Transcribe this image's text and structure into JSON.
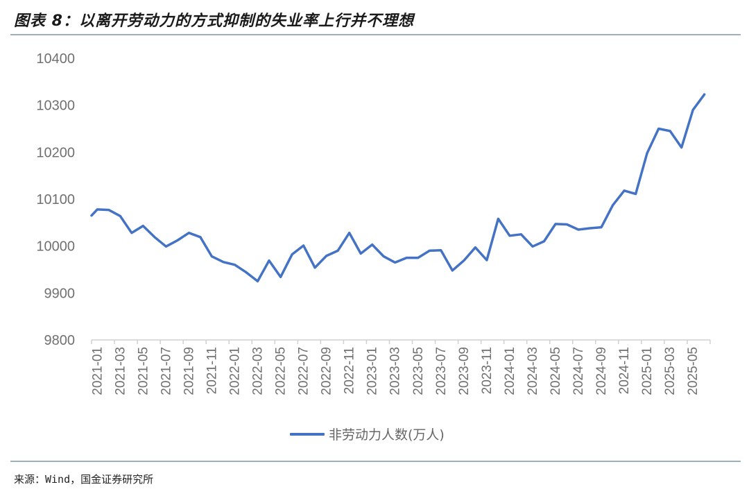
{
  "header": {
    "title": "图表 8：以离开劳动力的方式抑制的失业率上行并不理想"
  },
  "footer": {
    "source": "来源：Wind，国金证券研究所"
  },
  "colors": {
    "series": "#4472c4",
    "axis": "#d0d0d0",
    "tick_text": "#707070",
    "rule": "#9db0ba"
  },
  "chart_data": {
    "type": "line",
    "title": "以离开劳动力的方式抑制的失业率上行并不理想",
    "xlabel": "",
    "ylabel": "",
    "ylim": [
      9800,
      10400
    ],
    "yticks": [
      9800,
      9900,
      10000,
      10100,
      10200,
      10300,
      10400
    ],
    "grid": false,
    "legend_position": "bottom",
    "xtick_labels": [
      "2021-01",
      "2021-03",
      "2021-05",
      "2021-07",
      "2021-09",
      "2021-11",
      "2022-01",
      "2022-03",
      "2022-05",
      "2022-07",
      "2022-09",
      "2022-11",
      "2023-01",
      "2023-03",
      "2023-05",
      "2023-07",
      "2023-09",
      "2023-11",
      "2024-01",
      "2024-03",
      "2024-05",
      "2024-07",
      "2024-09",
      "2024-11",
      "2025-01",
      "2025-03",
      "2025-05"
    ],
    "x": [
      "2021-01",
      "2021-02",
      "2021-03",
      "2021-04",
      "2021-05",
      "2021-06",
      "2021-07",
      "2021-08",
      "2021-09",
      "2021-10",
      "2021-11",
      "2021-12",
      "2022-01",
      "2022-02",
      "2022-03",
      "2022-04",
      "2022-05",
      "2022-06",
      "2022-07",
      "2022-08",
      "2022-09",
      "2022-10",
      "2022-11",
      "2022-12",
      "2023-01",
      "2023-02",
      "2023-03",
      "2023-04",
      "2023-05",
      "2023-06",
      "2023-07",
      "2023-08",
      "2023-09",
      "2023-10",
      "2023-11",
      "2023-12",
      "2024-01",
      "2024-02",
      "2024-03",
      "2024-04",
      "2024-05",
      "2024-06",
      "2024-07",
      "2024-08",
      "2024-09",
      "2024-10",
      "2024-11",
      "2024-12",
      "2025-01",
      "2025-02",
      "2025-03",
      "2025-04",
      "2025-05",
      "2025-06"
    ],
    "series": [
      {
        "name": "非劳动力人数(万人)",
        "values": [
          10078,
          10077,
          10064,
          10028,
          10043,
          10019,
          9999,
          10012,
          10028,
          10019,
          9978,
          9966,
          9960,
          9944,
          9925,
          9969,
          9934,
          9982,
          10001,
          9954,
          9979,
          9990,
          10028,
          9984,
          10003,
          9978,
          9965,
          9975,
          9975,
          9990,
          9991,
          9948,
          9969,
          9997,
          9970,
          10058,
          10022,
          10025,
          9999,
          10010,
          10047,
          10046,
          10035,
          10038,
          10040,
          10087,
          10118,
          10111,
          10198,
          10250,
          10245,
          10210,
          10290,
          10323
        ]
      }
    ]
  },
  "legend": {
    "items": [
      {
        "label": "非劳动力人数(万人)"
      }
    ]
  }
}
